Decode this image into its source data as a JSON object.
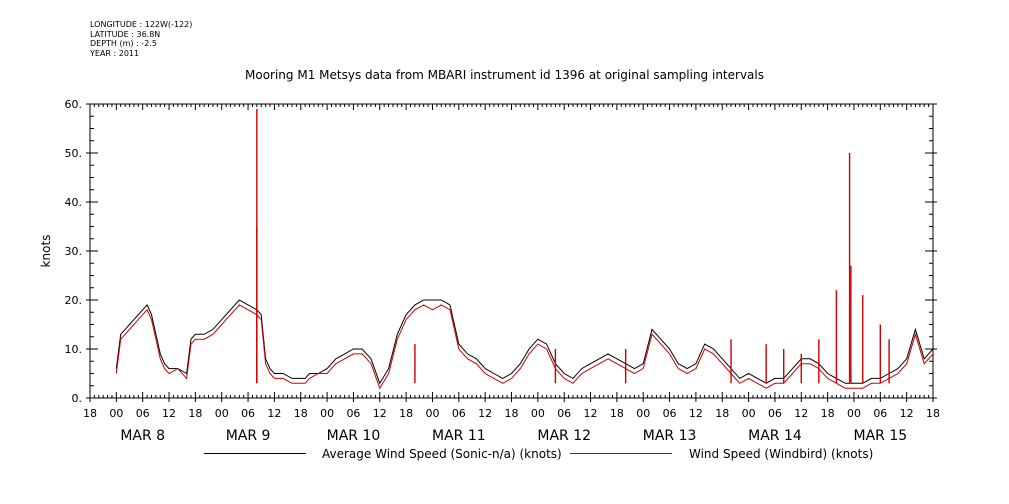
{
  "meta": {
    "longitude": "LONGITUDE : 122W(-122)",
    "latitude": "LATITUDE : 36.8N",
    "depth": "DEPTH (m) : -2.5",
    "year": "YEAR : 2011"
  },
  "chart_data": {
    "type": "line",
    "title": "Mooring M1 Metsys data from MBARI instrument id 1396 at original sampling intervals",
    "ylabel": "knots",
    "xlabel": "",
    "ylim": [
      0,
      60
    ],
    "yticks": [
      0,
      10,
      20,
      30,
      40,
      50,
      60
    ],
    "ytick_labels": [
      "0.",
      "10.",
      "20.",
      "30.",
      "40.",
      "50.",
      "60."
    ],
    "xlim_hours": [
      -6,
      186
    ],
    "x_tick_labels": [
      "18",
      "00",
      "06",
      "12",
      "18",
      "00",
      "06",
      "12",
      "18",
      "00",
      "06",
      "12",
      "18",
      "00",
      "06",
      "12",
      "18",
      "00",
      "06",
      "12",
      "18",
      "00",
      "06",
      "12",
      "18",
      "00",
      "06",
      "12",
      "18",
      "00",
      "06",
      "12",
      "18"
    ],
    "date_labels": [
      "MAR  8",
      "MAR  9",
      "MAR 10",
      "MAR 11",
      "MAR 12",
      "MAR 13",
      "MAR 14",
      "MAR 15"
    ],
    "grid": false,
    "legend_position": "bottom",
    "series": [
      {
        "name": "Average Wind Speed (Sonic-n/a) (knots)",
        "color": "#000000",
        "x_hours": [
          0,
          1,
          2,
          3,
          4,
          5,
          6,
          7,
          8,
          9,
          10,
          11,
          12,
          14,
          16,
          17,
          18,
          20,
          22,
          24,
          26,
          28,
          30,
          32,
          33,
          34,
          35,
          36,
          38,
          40,
          42,
          43,
          44,
          46,
          48,
          50,
          52,
          54,
          56,
          57,
          58,
          60,
          62,
          64,
          66,
          68,
          70,
          72,
          74,
          76,
          78,
          80,
          82,
          84,
          86,
          88,
          90,
          92,
          94,
          96,
          98,
          99,
          100,
          102,
          104,
          106,
          108,
          110,
          112,
          114,
          116,
          118,
          120,
          122,
          124,
          126,
          128,
          130,
          132,
          134,
          136,
          138,
          140,
          142,
          144,
          146,
          148,
          150,
          152,
          154,
          156,
          158,
          160,
          162,
          164,
          166,
          168,
          170,
          172,
          174,
          176,
          178,
          180,
          182,
          184,
          186
        ],
        "values": [
          6,
          13,
          14,
          15,
          16,
          17,
          18,
          19,
          17,
          13,
          9,
          7,
          6,
          6,
          5,
          12,
          13,
          13,
          14,
          16,
          18,
          20,
          19,
          18,
          17,
          8,
          6,
          5,
          5,
          4,
          4,
          4,
          5,
          5,
          6,
          8,
          9,
          10,
          10,
          9,
          8,
          3,
          6,
          13,
          17,
          19,
          20,
          20,
          20,
          19,
          11,
          9,
          8,
          6,
          5,
          4,
          5,
          7,
          10,
          12,
          11,
          9,
          7,
          5,
          4,
          6,
          7,
          8,
          9,
          8,
          7,
          6,
          7,
          14,
          12,
          10,
          7,
          6,
          7,
          11,
          10,
          8,
          6,
          4,
          5,
          4,
          3,
          4,
          4,
          6,
          8,
          8,
          7,
          5,
          4,
          3,
          3,
          3,
          4,
          4,
          5,
          6,
          8,
          14,
          8,
          10
        ]
      },
      {
        "name": "Wind Speed (Windbird) (knots)",
        "color": "#cc0000",
        "x_hours": [
          0,
          1,
          2,
          3,
          4,
          5,
          6,
          7,
          8,
          9,
          10,
          11,
          12,
          14,
          16,
          17,
          18,
          20,
          22,
          24,
          26,
          28,
          30,
          32,
          33,
          34,
          35,
          36,
          38,
          40,
          42,
          43,
          44,
          46,
          48,
          50,
          52,
          54,
          56,
          57,
          58,
          60,
          62,
          64,
          66,
          68,
          70,
          72,
          74,
          76,
          78,
          80,
          82,
          84,
          86,
          88,
          90,
          92,
          94,
          96,
          98,
          99,
          100,
          102,
          104,
          106,
          108,
          110,
          112,
          114,
          116,
          118,
          120,
          122,
          124,
          126,
          128,
          130,
          132,
          134,
          136,
          138,
          140,
          142,
          144,
          146,
          148,
          150,
          152,
          154,
          156,
          158,
          160,
          162,
          164,
          166,
          168,
          170,
          172,
          174,
          176,
          178,
          180,
          182,
          184,
          186
        ],
        "values": [
          5,
          12,
          13,
          14,
          15,
          16,
          17,
          18,
          16,
          12,
          8,
          6,
          5,
          6,
          4,
          11,
          12,
          12,
          13,
          15,
          17,
          19,
          18,
          17,
          16,
          7,
          5,
          4,
          4,
          3,
          3,
          3,
          4,
          5,
          5,
          7,
          8,
          9,
          9,
          8,
          7,
          2,
          5,
          12,
          16,
          18,
          19,
          18,
          19,
          18,
          10,
          8,
          7,
          5,
          4,
          3,
          4,
          6,
          9,
          11,
          10,
          8,
          6,
          4,
          3,
          5,
          6,
          7,
          8,
          7,
          6,
          5,
          6,
          13,
          11,
          9,
          6,
          5,
          6,
          10,
          9,
          7,
          5,
          3,
          4,
          3,
          2,
          3,
          3,
          5,
          7,
          7,
          6,
          4,
          3,
          2,
          2,
          2,
          3,
          3,
          4,
          5,
          7,
          13,
          7,
          9
        ],
        "spikes": [
          {
            "x_hours": 32,
            "value": 59
          },
          {
            "x_hours": 32,
            "value": 35
          },
          {
            "x_hours": 167,
            "value": 50
          },
          {
            "x_hours": 167.3,
            "value": 27
          },
          {
            "x_hours": 164,
            "value": 22
          },
          {
            "x_hours": 170,
            "value": 21
          },
          {
            "x_hours": 174,
            "value": 15
          },
          {
            "x_hours": 176,
            "value": 12
          },
          {
            "x_hours": 160,
            "value": 12
          },
          {
            "x_hours": 148,
            "value": 11
          },
          {
            "x_hours": 152,
            "value": 10
          },
          {
            "x_hours": 156,
            "value": 9
          },
          {
            "x_hours": 68,
            "value": 11
          },
          {
            "x_hours": 100,
            "value": 10
          },
          {
            "x_hours": 116,
            "value": 10
          },
          {
            "x_hours": 140,
            "value": 12
          }
        ]
      }
    ]
  }
}
